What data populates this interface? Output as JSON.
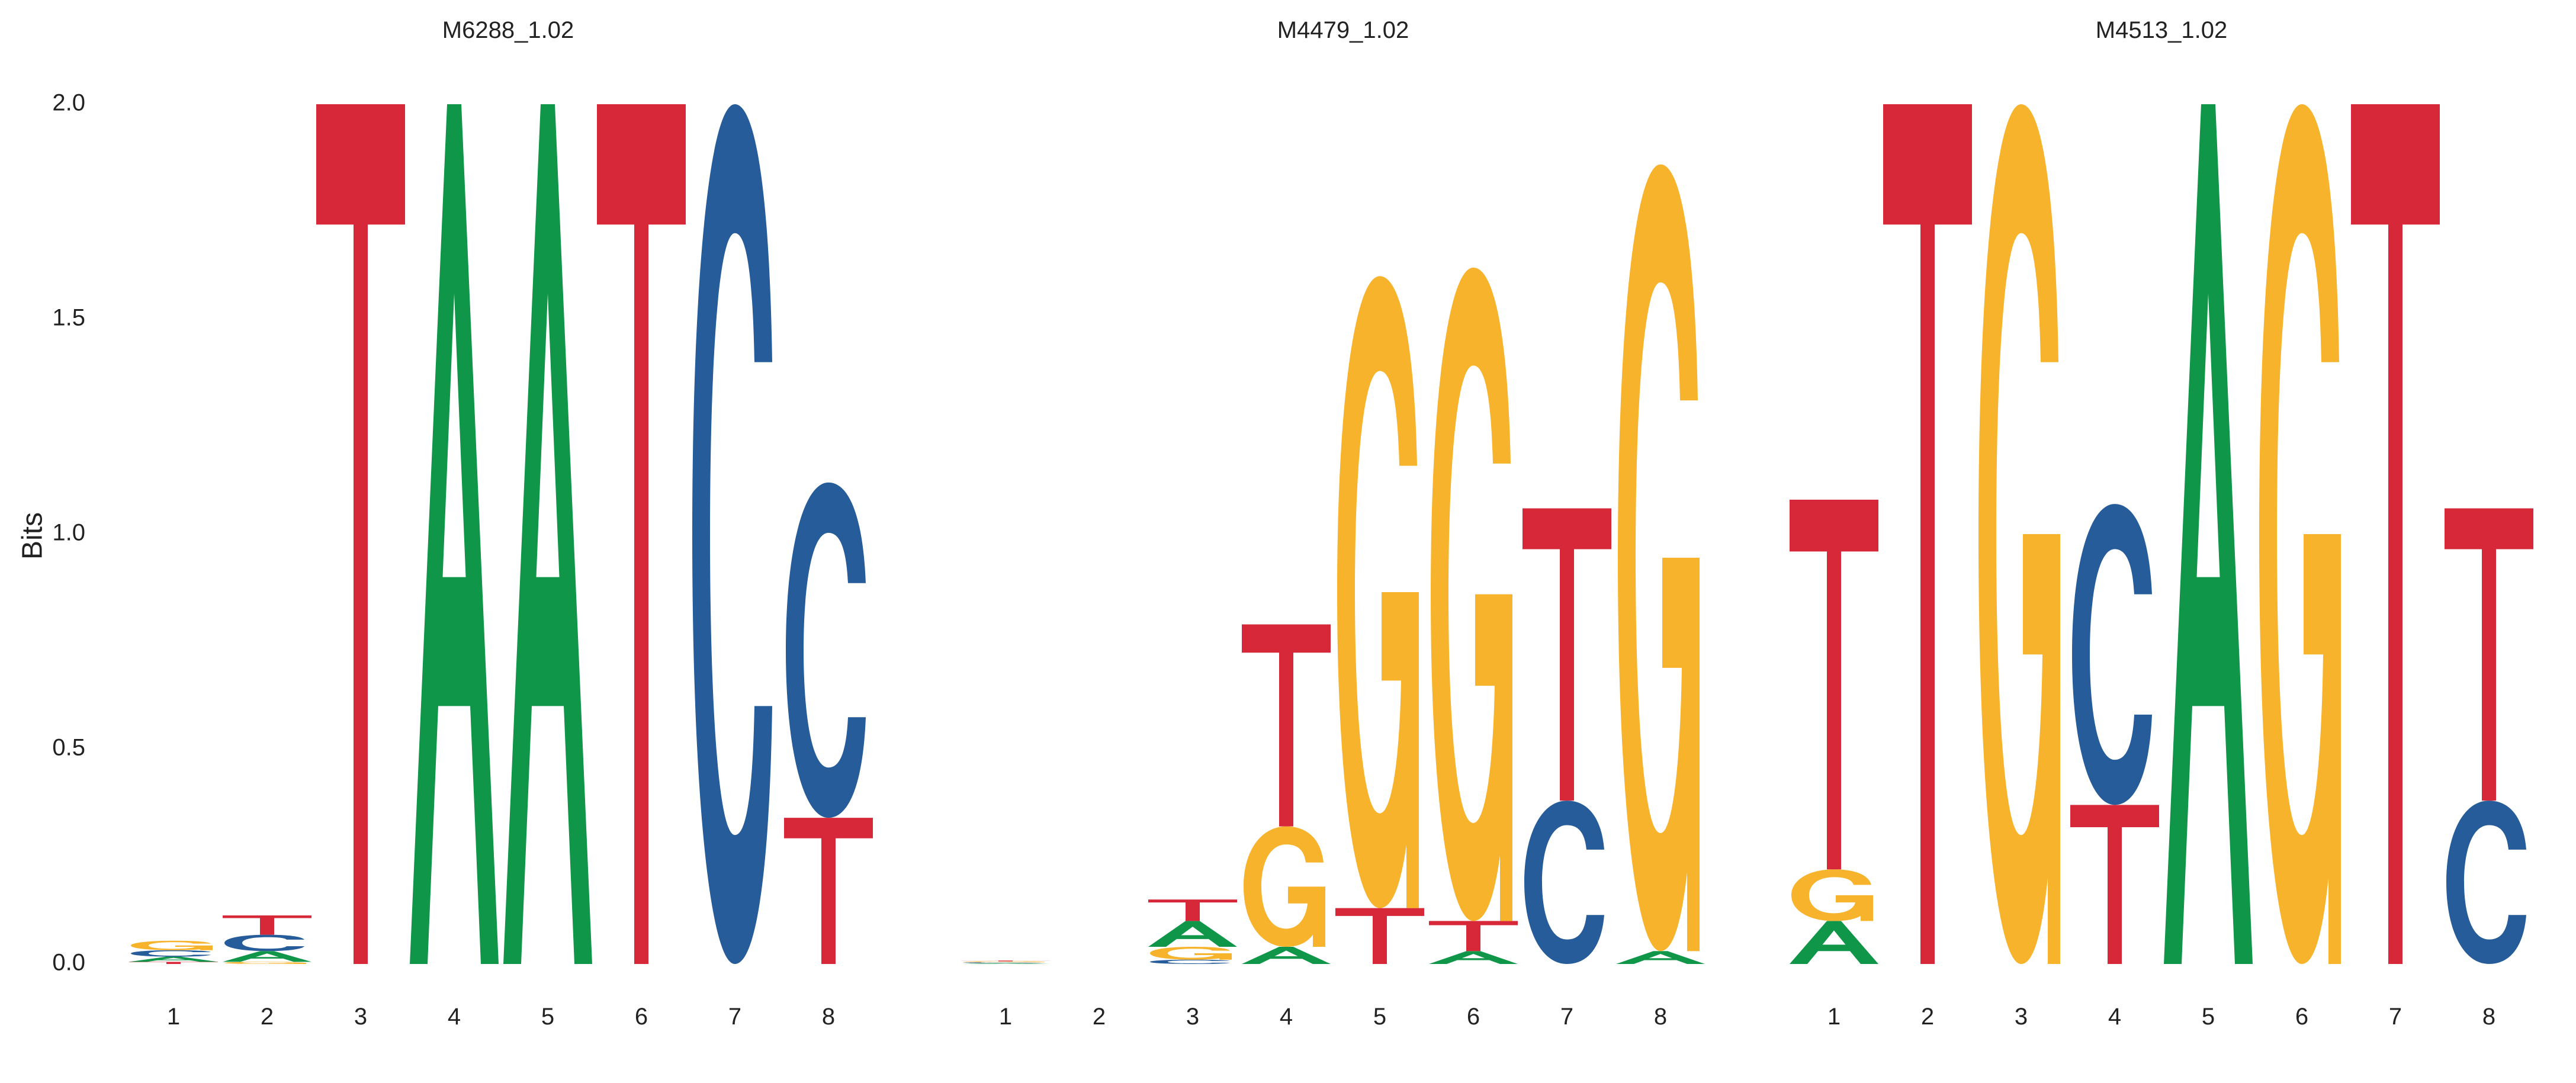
{
  "colors": {
    "A": "#109648",
    "C": "#255c99",
    "G": "#f7b32b",
    "T": "#d62839"
  },
  "chart_data": {
    "type": "sequence_logo",
    "ylabel": "Bits",
    "ylim": [
      0,
      2.0
    ],
    "yticks": [
      0.0,
      0.5,
      1.0,
      1.5,
      2.0
    ],
    "ytick_labels": [
      "0.0",
      "0.5",
      "1.0",
      "1.5",
      "2.0"
    ],
    "panels": [
      {
        "title": "M6288_1.02",
        "positions": [
          "1",
          "2",
          "3",
          "4",
          "5",
          "6",
          "7",
          "8"
        ],
        "stacks": [
          [
            [
              "T",
              0.005
            ],
            [
              "A",
              0.012
            ],
            [
              "C",
              0.015
            ],
            [
              "G",
              0.022
            ]
          ],
          [
            [
              "G",
              0.005
            ],
            [
              "A",
              0.025
            ],
            [
              "C",
              0.038
            ],
            [
              "T",
              0.045
            ]
          ],
          [
            [
              "T",
              2.0
            ]
          ],
          [
            [
              "A",
              2.0
            ]
          ],
          [
            [
              "A",
              2.0
            ]
          ],
          [
            [
              "T",
              2.0
            ]
          ],
          [
            [
              "C",
              2.0
            ]
          ],
          [
            [
              "T",
              0.34
            ],
            [
              "C",
              0.78
            ]
          ]
        ]
      },
      {
        "title": "M4479_1.02",
        "positions": [
          "1",
          "2",
          "3",
          "4",
          "5",
          "6",
          "7",
          "8"
        ],
        "stacks": [
          [
            [
              "A",
              0.002
            ],
            [
              "C",
              0.002
            ],
            [
              "G",
              0.002
            ],
            [
              "T",
              0.002
            ]
          ],
          [],
          [
            [
              "C",
              0.01
            ],
            [
              "G",
              0.03
            ],
            [
              "A",
              0.06
            ],
            [
              "T",
              0.05
            ]
          ],
          [
            [
              "A",
              0.04
            ],
            [
              "G",
              0.28
            ],
            [
              "T",
              0.47
            ]
          ],
          [
            [
              "T",
              0.13
            ],
            [
              "G",
              1.47
            ]
          ],
          [
            [
              "A",
              0.03
            ],
            [
              "T",
              0.07
            ],
            [
              "G",
              1.52
            ]
          ],
          [
            [
              "C",
              0.38
            ],
            [
              "T",
              0.68
            ]
          ],
          [
            [
              "A",
              0.03
            ],
            [
              "G",
              1.83
            ]
          ]
        ]
      },
      {
        "title": "M4513_1.02",
        "positions": [
          "1",
          "2",
          "3",
          "4",
          "5",
          "6",
          "7",
          "8"
        ],
        "stacks": [
          [
            [
              "A",
              0.1
            ],
            [
              "G",
              0.12
            ],
            [
              "T",
              0.86
            ]
          ],
          [
            [
              "T",
              2.0
            ]
          ],
          [
            [
              "G",
              2.0
            ]
          ],
          [
            [
              "T",
              0.37
            ],
            [
              "C",
              0.7
            ]
          ],
          [
            [
              "A",
              2.0
            ]
          ],
          [
            [
              "G",
              2.0
            ]
          ],
          [
            [
              "T",
              2.0
            ]
          ],
          [
            [
              "C",
              0.38
            ],
            [
              "T",
              0.68
            ]
          ]
        ]
      }
    ]
  }
}
